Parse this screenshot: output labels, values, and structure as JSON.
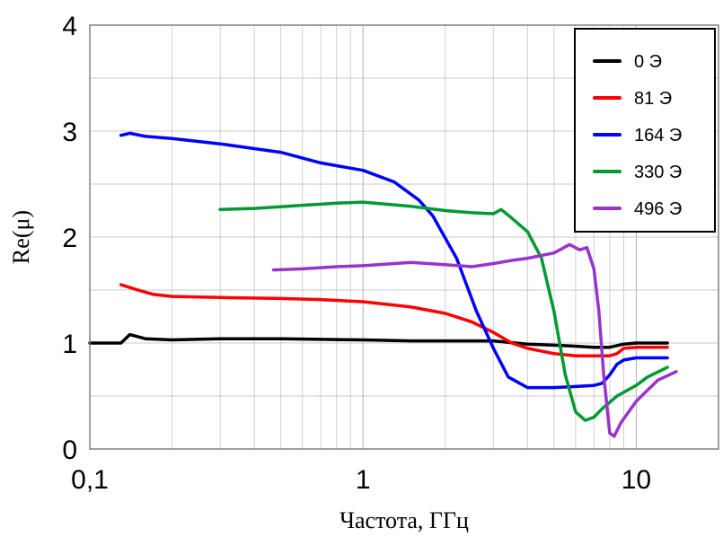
{
  "chart_data": {
    "type": "line",
    "xscale": "log",
    "xlabel": "Частота, ГГц",
    "ylabel": "Re(μ)",
    "xlim": [
      0.1,
      20
    ],
    "ylim": [
      0,
      4
    ],
    "xticks": [
      0.1,
      1,
      10
    ],
    "xtick_labels": [
      "0,1",
      "1",
      "10"
    ],
    "yticks": [
      0,
      1,
      2,
      3,
      4
    ],
    "ytick_labels": [
      "0",
      "1",
      "2",
      "3",
      "4"
    ],
    "grid": "on (major and minor, log x)",
    "legend_position": "top-right",
    "series": [
      {
        "name": "0 Э",
        "color": "#000000",
        "points": [
          [
            0.1,
            1.0
          ],
          [
            0.13,
            1.0
          ],
          [
            0.14,
            1.08
          ],
          [
            0.15,
            1.06
          ],
          [
            0.16,
            1.04
          ],
          [
            0.2,
            1.03
          ],
          [
            0.3,
            1.04
          ],
          [
            0.5,
            1.04
          ],
          [
            1,
            1.03
          ],
          [
            1.5,
            1.02
          ],
          [
            2,
            1.02
          ],
          [
            3,
            1.02
          ],
          [
            4,
            0.99
          ],
          [
            5,
            0.98
          ],
          [
            6,
            0.97
          ],
          [
            7,
            0.96
          ],
          [
            8,
            0.96
          ],
          [
            9,
            0.99
          ],
          [
            10,
            1.0
          ],
          [
            12,
            1.0
          ],
          [
            13,
            1.0
          ]
        ]
      },
      {
        "name": "81 Э",
        "color": "#ff0000",
        "points": [
          [
            0.13,
            1.55
          ],
          [
            0.15,
            1.5
          ],
          [
            0.17,
            1.46
          ],
          [
            0.2,
            1.44
          ],
          [
            0.3,
            1.43
          ],
          [
            0.5,
            1.42
          ],
          [
            0.7,
            1.41
          ],
          [
            1,
            1.39
          ],
          [
            1.5,
            1.34
          ],
          [
            2,
            1.28
          ],
          [
            2.5,
            1.2
          ],
          [
            3,
            1.1
          ],
          [
            3.5,
            1.0
          ],
          [
            4,
            0.95
          ],
          [
            5,
            0.9
          ],
          [
            6,
            0.88
          ],
          [
            7,
            0.88
          ],
          [
            8,
            0.88
          ],
          [
            8.5,
            0.9
          ],
          [
            9,
            0.95
          ],
          [
            10,
            0.96
          ],
          [
            12,
            0.96
          ],
          [
            13,
            0.96
          ]
        ]
      },
      {
        "name": "164 Э",
        "color": "#0000ff",
        "points": [
          [
            0.13,
            2.96
          ],
          [
            0.14,
            2.98
          ],
          [
            0.16,
            2.95
          ],
          [
            0.2,
            2.93
          ],
          [
            0.3,
            2.88
          ],
          [
            0.5,
            2.8
          ],
          [
            0.7,
            2.7
          ],
          [
            1,
            2.63
          ],
          [
            1.3,
            2.52
          ],
          [
            1.6,
            2.35
          ],
          [
            1.8,
            2.2
          ],
          [
            2.2,
            1.8
          ],
          [
            2.6,
            1.3
          ],
          [
            3,
            0.95
          ],
          [
            3.4,
            0.68
          ],
          [
            4,
            0.58
          ],
          [
            5,
            0.58
          ],
          [
            6,
            0.59
          ],
          [
            7,
            0.6
          ],
          [
            7.5,
            0.62
          ],
          [
            8,
            0.7
          ],
          [
            8.5,
            0.8
          ],
          [
            9,
            0.84
          ],
          [
            10,
            0.86
          ],
          [
            12,
            0.86
          ],
          [
            13,
            0.86
          ]
        ]
      },
      {
        "name": "330 Э",
        "color": "#009933",
        "points": [
          [
            0.3,
            2.26
          ],
          [
            0.4,
            2.27
          ],
          [
            0.6,
            2.3
          ],
          [
            0.8,
            2.32
          ],
          [
            1,
            2.33
          ],
          [
            1.5,
            2.29
          ],
          [
            2,
            2.25
          ],
          [
            2.5,
            2.23
          ],
          [
            3,
            2.22
          ],
          [
            3.2,
            2.26
          ],
          [
            3.5,
            2.18
          ],
          [
            4,
            2.05
          ],
          [
            4.5,
            1.8
          ],
          [
            5,
            1.3
          ],
          [
            5.5,
            0.7
          ],
          [
            6,
            0.35
          ],
          [
            6.5,
            0.27
          ],
          [
            7,
            0.3
          ],
          [
            7.5,
            0.38
          ],
          [
            8.5,
            0.5
          ],
          [
            10,
            0.6
          ],
          [
            11,
            0.68
          ],
          [
            13,
            0.77
          ]
        ]
      },
      {
        "name": "496 Э",
        "color": "#9933cc",
        "points": [
          [
            0.47,
            1.69
          ],
          [
            0.6,
            1.7
          ],
          [
            0.8,
            1.72
          ],
          [
            1,
            1.73
          ],
          [
            1.5,
            1.76
          ],
          [
            2,
            1.74
          ],
          [
            2.5,
            1.72
          ],
          [
            3,
            1.75
          ],
          [
            3.5,
            1.78
          ],
          [
            4,
            1.8
          ],
          [
            5,
            1.85
          ],
          [
            5.7,
            1.93
          ],
          [
            6.2,
            1.88
          ],
          [
            6.6,
            1.9
          ],
          [
            7,
            1.7
          ],
          [
            7.3,
            1.3
          ],
          [
            7.6,
            0.7
          ],
          [
            8,
            0.15
          ],
          [
            8.3,
            0.12
          ],
          [
            8.8,
            0.25
          ],
          [
            10,
            0.45
          ],
          [
            12,
            0.65
          ],
          [
            14,
            0.73
          ]
        ]
      }
    ]
  }
}
